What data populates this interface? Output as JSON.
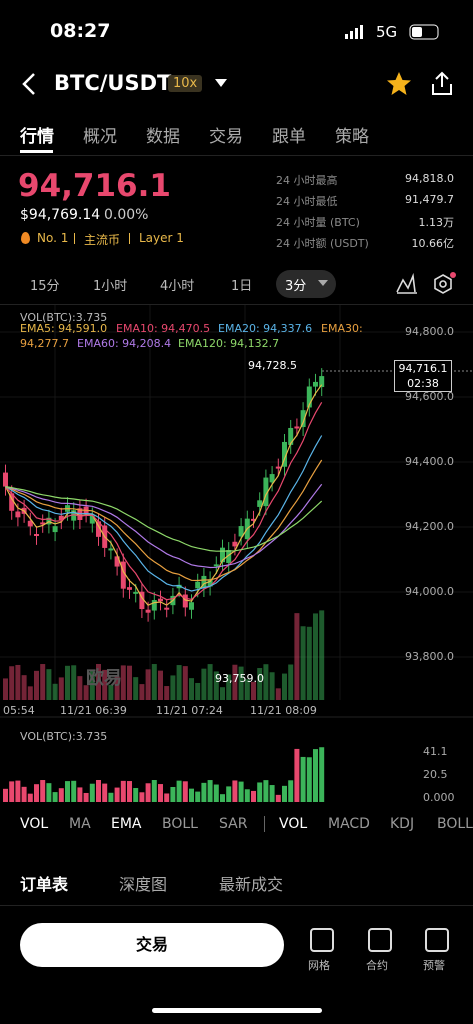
{
  "status_bar": {
    "time": "08:27",
    "network": "5G"
  },
  "header": {
    "pair": "BTC/USDT",
    "leverage": "10x"
  },
  "tabs": [
    "行情",
    "概况",
    "数据",
    "交易",
    "跟单",
    "策略"
  ],
  "price": {
    "last": "94,716.1",
    "usd": "$94,769.14",
    "change": "0.00%",
    "tags": [
      "No. 1",
      "主流币",
      "Layer 1"
    ]
  },
  "stats": [
    {
      "label": "24 小时最高",
      "value": "94,818.0"
    },
    {
      "label": "24 小时最低",
      "value": "91,479.7"
    },
    {
      "label": "24 小时量 (BTC)",
      "value": "1.13万"
    },
    {
      "label": "24 小时额 (USDT)",
      "value": "10.66亿"
    }
  ],
  "timeframes": [
    "15分",
    "1小时",
    "4小时",
    "1日",
    "3分"
  ],
  "chart": {
    "vol": "VOL(BTC):3.735",
    "ema": [
      "EMA5: 94,591.0",
      "EMA10: 94,470.5",
      "EMA20: 94,337.6",
      "EMA30:",
      "94,277.7",
      "EMA60: 94,208.4",
      "EMA120: 94,132.7"
    ],
    "y_labels": [
      "94,800.0",
      "94,600.0",
      "94,400.0",
      "94,200.0",
      "94,000.0",
      "93,800.0"
    ],
    "price_tag": "94,716.1",
    "countdown": "02:38",
    "high_marker": "94,728.5",
    "low_marker": "93,759.0",
    "watermark": "欧易",
    "x_labels": [
      "05:54",
      "11/21 06:39",
      "11/21 07:24",
      "11/21 08:09"
    ]
  },
  "volume_panel": {
    "title": "VOL(BTC):3.735",
    "y_labels": [
      "41.1",
      "20.5",
      "0.000"
    ]
  },
  "indicators": {
    "main": [
      "VOL",
      "MA",
      "EMA",
      "BOLL",
      "SAR"
    ],
    "sub": [
      "VOL",
      "MACD",
      "KDJ",
      "BOLL"
    ]
  },
  "bottom_tabs": [
    "订单表",
    "深度图",
    "最新成交"
  ],
  "bottom_bar": {
    "trade": "交易",
    "actions": [
      "网格",
      "合约",
      "预警"
    ]
  }
}
